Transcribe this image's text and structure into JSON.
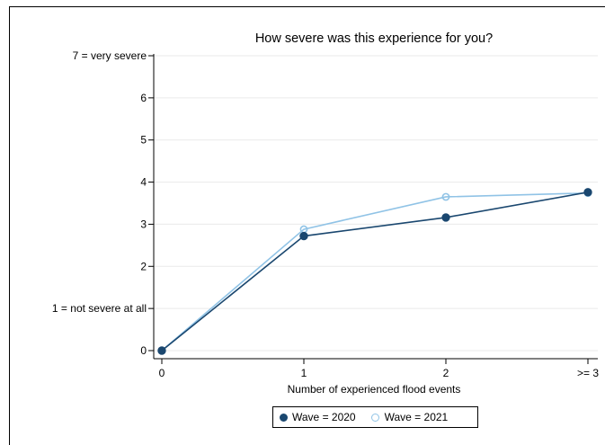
{
  "chart_data": {
    "type": "line",
    "title": "How severe was this experience for you?",
    "xlabel": "Number of experienced flood events",
    "ylabel": "",
    "categories": [
      "0",
      "1",
      "2",
      ">= 3"
    ],
    "x": [
      0,
      1,
      2,
      3
    ],
    "ylim": [
      0,
      7
    ],
    "y_ticks": [
      {
        "value": 0,
        "label": "0"
      },
      {
        "value": 1,
        "label": "1 = not severe at all"
      },
      {
        "value": 2,
        "label": "2"
      },
      {
        "value": 3,
        "label": "3"
      },
      {
        "value": 4,
        "label": "4"
      },
      {
        "value": 5,
        "label": "5"
      },
      {
        "value": 6,
        "label": "6"
      },
      {
        "value": 7,
        "label": "7 = very severe"
      }
    ],
    "grid": true,
    "legend_position": "bottom",
    "series": [
      {
        "name": "Wave = 2020",
        "values": [
          0,
          2.72,
          3.16,
          3.76
        ],
        "color": "#1a476f",
        "marker": "filled-circle"
      },
      {
        "name": "Wave = 2021",
        "values": [
          0,
          2.88,
          3.65,
          3.74
        ],
        "color": "#90c3e6",
        "marker": "hollow-circle"
      }
    ]
  }
}
